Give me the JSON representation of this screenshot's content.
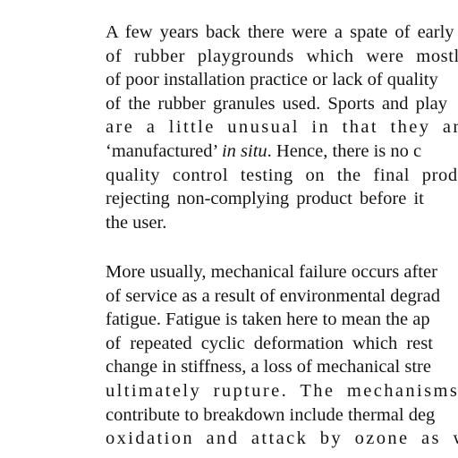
{
  "document": {
    "paragraphs": [
      {
        "lines": [
          "A few years back there were a spate of early",
          "of rubber playgrounds which were mostly",
          "of poor installation practice or lack of quality",
          "of the rubber granules used. Sports and play",
          "are a little unusual in that they ar",
          {
            "before": "‘manufactured’ ",
            "italic": "in situ",
            "after": ". Hence, there is no c"
          },
          "quality control testing on the final prod",
          "rejecting non-complying product before it",
          "the user."
        ]
      },
      {
        "lines": [
          "More usually, mechanical failure occurs after",
          "of service as a result of environmental degrad",
          "fatigue. Fatigue is taken here to mean the ap",
          "of repeated cyclic deformation which rest",
          "change in stiffness, a loss of mechanical stre",
          "ultimately rupture. The mechanisms wh",
          "contribute to breakdown include thermal deg",
          "oxidation and attack by ozone as wel"
        ]
      }
    ]
  }
}
